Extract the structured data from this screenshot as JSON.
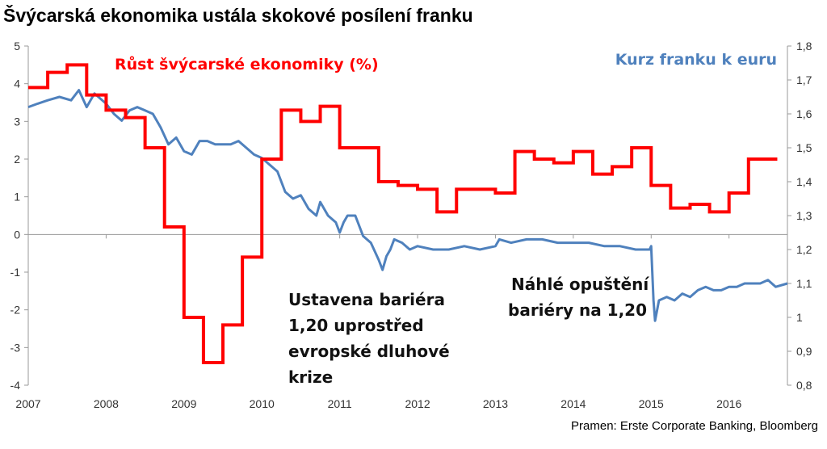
{
  "chart_data": {
    "type": "line",
    "title": "Švýcarská ekonomika ustála skokové posílení franku",
    "source": "Pramen: Erste Corporate Banking, Bloomberg",
    "colors": {
      "gdp": "#ff0000",
      "fx": "#4f81bd"
    },
    "x_axis": {
      "range": [
        2007,
        2016.75
      ],
      "tick_labels": [
        "2007",
        "2008",
        "2009",
        "2010",
        "2011",
        "2012",
        "2013",
        "2014",
        "2015",
        "2016"
      ]
    },
    "y_left": {
      "range": [
        -4,
        5
      ],
      "tick_labels": [
        "5",
        "4",
        "3",
        "2",
        "1",
        "0",
        "-1",
        "-2",
        "-3",
        "-4"
      ]
    },
    "y_right": {
      "range": [
        0.8,
        1.8
      ],
      "tick_labels": [
        "1,8",
        "1,7",
        "1,6",
        "1,5",
        "1,4",
        "1,3",
        "1,2",
        "1,1",
        "1",
        "0,9",
        "0,8"
      ]
    },
    "grid": false,
    "series": [
      {
        "name": "Růst švýcarské ekonomiky (%)",
        "axis": "left",
        "step": true,
        "x": [
          2007.0,
          2007.25,
          2007.5,
          2007.75,
          2008.0,
          2008.25,
          2008.5,
          2008.75,
          2009.0,
          2009.25,
          2009.5,
          2009.75,
          2010.0,
          2010.25,
          2010.5,
          2010.75,
          2011.0,
          2011.25,
          2011.5,
          2011.75,
          2012.0,
          2012.25,
          2012.5,
          2012.75,
          2013.0,
          2013.25,
          2013.5,
          2013.75,
          2014.0,
          2014.25,
          2014.5,
          2014.75,
          2015.0,
          2015.25,
          2015.5,
          2015.75,
          2016.0,
          2016.25,
          2016.5
        ],
        "values": [
          3.9,
          4.3,
          4.5,
          3.7,
          3.3,
          3.1,
          2.3,
          0.2,
          -2.2,
          -3.4,
          -2.4,
          -0.6,
          2.0,
          3.3,
          3.0,
          3.4,
          2.3,
          2.3,
          1.4,
          1.3,
          1.2,
          0.6,
          1.2,
          1.2,
          1.1,
          2.2,
          2.0,
          1.9,
          2.2,
          1.6,
          1.8,
          2.3,
          1.3,
          0.7,
          0.8,
          0.6,
          1.1,
          2.0,
          2.0
        ]
      },
      {
        "name": "Kurz franku k euru",
        "axis": "right",
        "step": false,
        "x": [
          2007.0,
          2007.12,
          2007.25,
          2007.4,
          2007.55,
          2007.65,
          2007.75,
          2007.85,
          2008.0,
          2008.1,
          2008.2,
          2008.3,
          2008.4,
          2008.5,
          2008.6,
          2008.7,
          2008.8,
          2008.9,
          2009.0,
          2009.1,
          2009.2,
          2009.3,
          2009.4,
          2009.5,
          2009.6,
          2009.7,
          2009.8,
          2009.9,
          2010.0,
          2010.1,
          2010.2,
          2010.3,
          2010.4,
          2010.5,
          2010.6,
          2010.7,
          2010.75,
          2010.85,
          2010.95,
          2011.0,
          2011.05,
          2011.1,
          2011.2,
          2011.3,
          2011.4,
          2011.5,
          2011.55,
          2011.6,
          2011.65,
          2011.7,
          2011.8,
          2011.9,
          2012.0,
          2012.2,
          2012.4,
          2012.6,
          2012.8,
          2013.0,
          2013.05,
          2013.2,
          2013.4,
          2013.6,
          2013.8,
          2014.0,
          2014.2,
          2014.4,
          2014.6,
          2014.8,
          2014.98,
          2015.0,
          2015.03,
          2015.05,
          2015.1,
          2015.2,
          2015.3,
          2015.4,
          2015.5,
          2015.6,
          2015.7,
          2015.8,
          2015.9,
          2016.0,
          2016.1,
          2016.2,
          2016.3,
          2016.4,
          2016.5,
          2016.6,
          2016.75
        ],
        "values": [
          1.62,
          1.63,
          1.64,
          1.65,
          1.64,
          1.67,
          1.62,
          1.66,
          1.63,
          1.6,
          1.58,
          1.61,
          1.62,
          1.61,
          1.6,
          1.56,
          1.51,
          1.53,
          1.49,
          1.48,
          1.52,
          1.52,
          1.51,
          1.51,
          1.51,
          1.52,
          1.5,
          1.48,
          1.47,
          1.45,
          1.43,
          1.37,
          1.35,
          1.36,
          1.32,
          1.3,
          1.34,
          1.3,
          1.28,
          1.25,
          1.28,
          1.3,
          1.3,
          1.24,
          1.22,
          1.17,
          1.14,
          1.18,
          1.2,
          1.23,
          1.22,
          1.2,
          1.21,
          1.2,
          1.2,
          1.21,
          1.2,
          1.21,
          1.23,
          1.22,
          1.23,
          1.23,
          1.22,
          1.22,
          1.22,
          1.21,
          1.21,
          1.2,
          1.2,
          1.21,
          1.05,
          0.99,
          1.05,
          1.06,
          1.05,
          1.07,
          1.06,
          1.08,
          1.09,
          1.08,
          1.08,
          1.09,
          1.09,
          1.1,
          1.1,
          1.1,
          1.11,
          1.09,
          1.1
        ]
      }
    ],
    "annotations": [
      {
        "lines": [
          "Ustavena bariéra",
          "1,20 uprostřed",
          "evropské dluhové",
          "krize"
        ]
      },
      {
        "lines": [
          "Náhlé opuštění",
          "bariéry na 1,20"
        ]
      }
    ]
  }
}
